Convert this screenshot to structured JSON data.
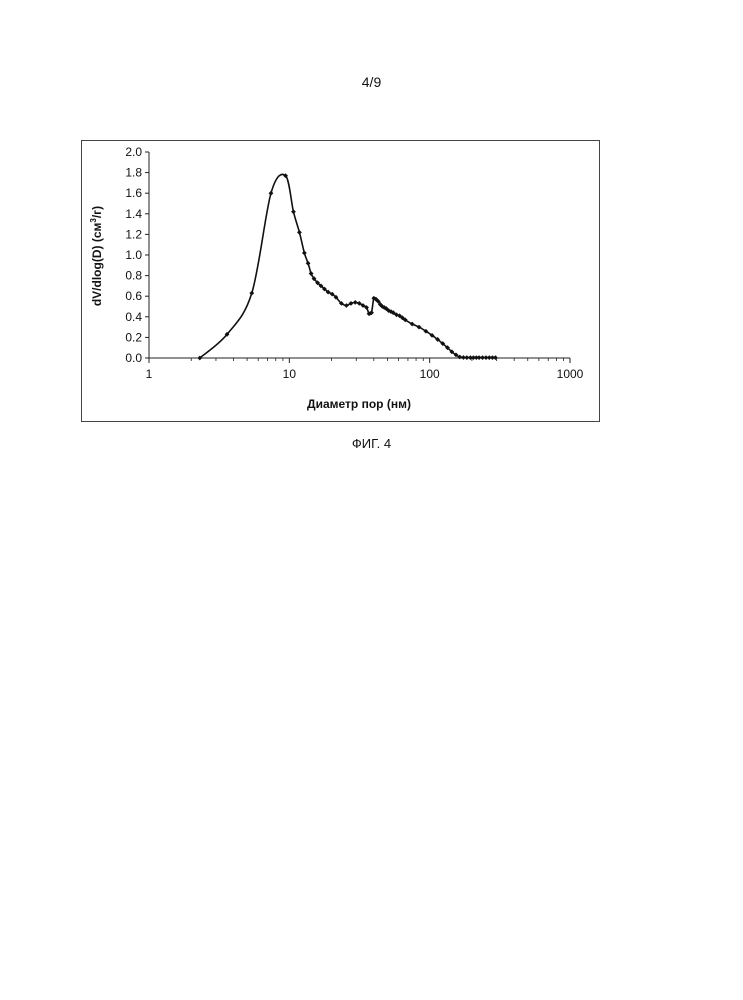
{
  "page": {
    "number": "4/9",
    "figure_caption": "ФИГ. 4"
  },
  "chart_data": {
    "type": "scatter",
    "mode": "line+markers",
    "xlabel": "Диаметр пор (нм)",
    "ylabel_main": "dV/dlog(D) (см",
    "ylabel_sup": "3",
    "ylabel_end": "/г)",
    "xscale": "log",
    "xlim": [
      1,
      1000
    ],
    "ylim": [
      0,
      2.0
    ],
    "x_ticks": [
      1,
      10,
      100,
      1000
    ],
    "x_tick_labels": [
      "1",
      "10",
      "100",
      "1000"
    ],
    "y_ticks": [
      0.0,
      0.2,
      0.4,
      0.6,
      0.8,
      1.0,
      1.2,
      1.4,
      1.6,
      1.8,
      2.0
    ],
    "y_tick_labels": [
      "0.0",
      "0.2",
      "0.4",
      "0.6",
      "0.8",
      "1.0",
      "1.2",
      "1.4",
      "1.6",
      "1.8",
      "2.0"
    ],
    "grid": false,
    "legend": "none",
    "line_color": "#111111",
    "series": [
      {
        "x": [
          2.3,
          3.6,
          5.4,
          7.4,
          9.4,
          10.7,
          11.8,
          12.8,
          13.6,
          14.3,
          15.0,
          15.9,
          16.8,
          17.8,
          18.9,
          20.2,
          21.5,
          23.5,
          25.5,
          27.5,
          29.5,
          31.5,
          33.5,
          35.5,
          37.0,
          38.5,
          40.0,
          41.5,
          43.0,
          44.5,
          46.0,
          47.5,
          49.0,
          51.0,
          53.0,
          55.0,
          58.0,
          61.0,
          64.0,
          67.0,
          75.0,
          84.0,
          94.0,
          104.0,
          114.0,
          124.0,
          134.0,
          144.0,
          154.0,
          164.0,
          174.0,
          184.0,
          195.0,
          205.0,
          215.0,
          225.0,
          238.0,
          252.0,
          266.0,
          280.0,
          294.0
        ],
        "y": [
          0.0,
          0.23,
          0.63,
          1.6,
          1.77,
          1.42,
          1.22,
          1.02,
          0.92,
          0.82,
          0.77,
          0.73,
          0.7,
          0.67,
          0.64,
          0.62,
          0.59,
          0.53,
          0.51,
          0.53,
          0.54,
          0.53,
          0.51,
          0.49,
          0.43,
          0.44,
          0.58,
          0.57,
          0.55,
          0.52,
          0.5,
          0.49,
          0.48,
          0.46,
          0.45,
          0.44,
          0.42,
          0.41,
          0.39,
          0.37,
          0.33,
          0.3,
          0.26,
          0.22,
          0.18,
          0.14,
          0.1,
          0.06,
          0.03,
          0.01,
          0.005,
          0.004,
          0.004,
          0.004,
          0.004,
          0.004,
          0.004,
          0.004,
          0.004,
          0.004,
          0.004
        ]
      }
    ]
  }
}
